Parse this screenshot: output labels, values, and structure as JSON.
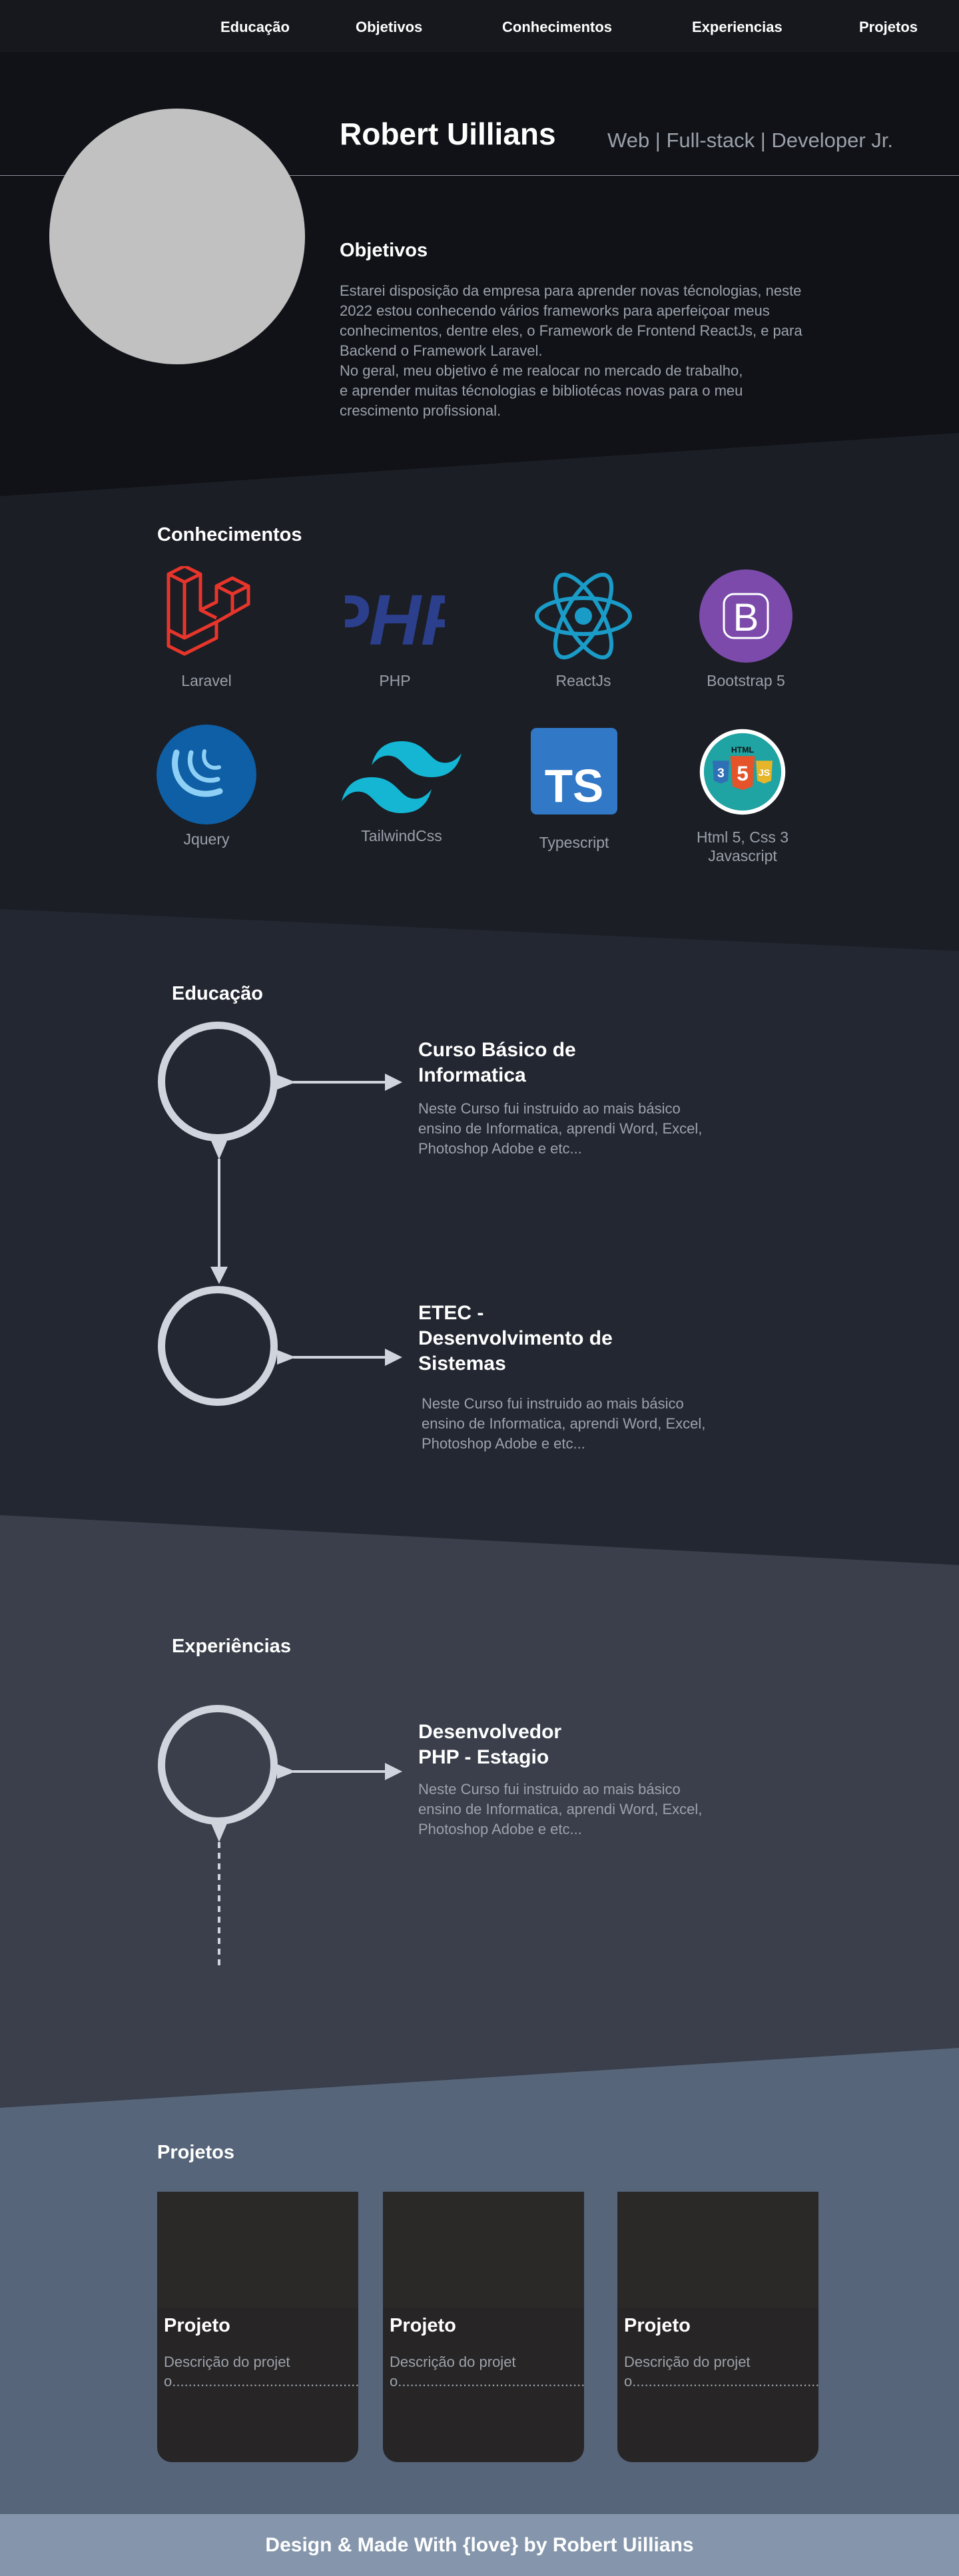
{
  "nav": {
    "items": [
      {
        "label": "Educação"
      },
      {
        "label": "Objetivos"
      },
      {
        "label": "Conhecimentos"
      },
      {
        "label": "Experiencias"
      },
      {
        "label": "Projetos"
      }
    ]
  },
  "hero": {
    "name": "Robert Uillians",
    "role": "Web | Full-stack | Developer Jr."
  },
  "objectives": {
    "title": "Objetivos",
    "lines": [
      "Estarei disposição da empresa para aprender novas técnologias, neste",
      "2022 estou conhecendo vários frameworks para aperfeiçoar meus",
      "conhecimentos, dentre eles, o Framework de Frontend ReactJs, e para",
      "Backend o Framework Laravel.",
      "No geral, meu objetivo é me realocar no mercado de trabalho,",
      "e aprender muitas técnologias e bibliotécas novas para o meu",
      "crescimento profissional."
    ]
  },
  "knowledge": {
    "title": "Conhecimentos",
    "skills": [
      {
        "label": "Laravel",
        "icon": "laravel-icon"
      },
      {
        "label": "PHP",
        "icon": "php-icon"
      },
      {
        "label": "ReactJs",
        "icon": "react-icon"
      },
      {
        "label": "Bootstrap 5",
        "icon": "bootstrap-icon"
      },
      {
        "label": "Jquery",
        "icon": "jquery-icon"
      },
      {
        "label": "TailwindCss",
        "icon": "tailwind-icon"
      },
      {
        "label": "Typescript",
        "icon": "typescript-icon"
      },
      {
        "label": "Html 5, Css 3",
        "label2": "Javascript",
        "icon": "html-css-js-icon"
      }
    ],
    "icon_text": {
      "php": "PHP",
      "bootstrap": "B",
      "typescript": "TS",
      "html_badge": "HTML",
      "html_num": "5",
      "css_num": "3",
      "js_num": "JS"
    }
  },
  "education": {
    "title": "Educação",
    "items": [
      {
        "title_lines": [
          "Curso Básico de",
          "Informatica"
        ],
        "desc_lines": [
          "Neste Curso fui instruido ao mais básico",
          "ensino de Informatica, aprendi Word, Excel,",
          "Photoshop Adobe e etc..."
        ]
      },
      {
        "title_lines": [
          "ETEC -",
          "Desenvolvimento de",
          "Sistemas"
        ],
        "desc_lines": [
          "Neste Curso fui instruido ao mais básico",
          "ensino de Informatica, aprendi Word, Excel,",
          "Photoshop Adobe e etc..."
        ]
      }
    ]
  },
  "experience": {
    "title": "Experiências",
    "items": [
      {
        "title_lines": [
          "Desenvolvedor",
          "PHP - Estagio"
        ],
        "desc_lines": [
          "Neste Curso fui instruido ao mais básico",
          "ensino de Informatica, aprendi Word, Excel,",
          "Photoshop Adobe e etc..."
        ]
      }
    ]
  },
  "projects": {
    "title": "Projetos",
    "cards": [
      {
        "title": "Projeto",
        "desc": "Descrição do projeto................................................................................................................................"
      },
      {
        "title": "Projeto",
        "desc": "Descrição do projeto................................................................................................................................"
      },
      {
        "title": "Projeto",
        "desc": "Descrição do projeto................................................................................................................................"
      }
    ]
  },
  "footer": {
    "text": "Design & Made With {love} by Robert Uillians"
  },
  "colors": {
    "laravel": "#e8352b",
    "php": "#2b3f8c",
    "react": "#1a9cc9",
    "bootstrap": "#7b4aab",
    "jquery": "#0e5fa5",
    "tailwind": "#14b6d4",
    "typescript": "#3178c6",
    "ring": "#cfd4dd"
  }
}
